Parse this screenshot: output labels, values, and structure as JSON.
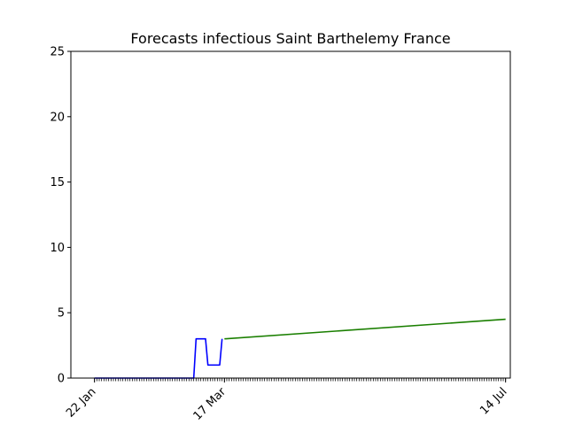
{
  "chart_data": {
    "type": "line",
    "title": "Forecasts infectious Saint Barthelemy France",
    "xlabel": "",
    "ylabel": "",
    "x_start": "2020-01-22",
    "x_end": "2020-07-14",
    "xlim": [
      "2020-01-12",
      "2020-07-16"
    ],
    "ylim": [
      0,
      25
    ],
    "y_ticks": [
      0,
      5,
      10,
      15,
      20,
      25
    ],
    "x_tick_labels": [
      {
        "date": "2020-01-22",
        "label": "22 Jan"
      },
      {
        "date": "2020-03-17",
        "label": "17 Mar"
      },
      {
        "date": "2020-07-14",
        "label": "14 Jul"
      }
    ],
    "grid": false,
    "series": [
      {
        "color": "#0000ff",
        "points": [
          [
            "2020-01-22",
            0
          ],
          [
            "2020-03-04",
            0
          ],
          [
            "2020-03-05",
            3
          ],
          [
            "2020-03-09",
            3
          ],
          [
            "2020-03-10",
            1
          ],
          [
            "2020-03-15",
            1
          ],
          [
            "2020-03-16",
            3
          ]
        ]
      },
      {
        "color": "#1a7f00",
        "points": [
          [
            "2020-03-17",
            3.0
          ],
          [
            "2020-07-14",
            4.5
          ]
        ]
      }
    ]
  }
}
